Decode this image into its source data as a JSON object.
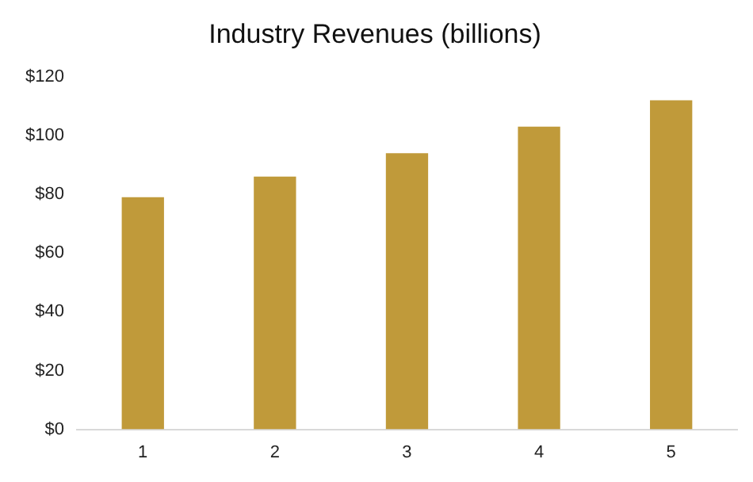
{
  "chart_data": {
    "type": "bar",
    "title": "Industry Revenues (billions)",
    "categories": [
      "1",
      "2",
      "3",
      "4",
      "5"
    ],
    "values": [
      79,
      86,
      94,
      103,
      112
    ],
    "color": "#c09a3a",
    "ylim": [
      0,
      120
    ],
    "yticks": [
      {
        "value": 0,
        "label": "$0"
      },
      {
        "value": 20,
        "label": "$20"
      },
      {
        "value": 40,
        "label": "$40"
      },
      {
        "value": 60,
        "label": "$60"
      },
      {
        "value": 80,
        "label": "$80"
      },
      {
        "value": 100,
        "label": "$100"
      },
      {
        "value": 120,
        "label": "$120"
      }
    ],
    "grid": false
  }
}
